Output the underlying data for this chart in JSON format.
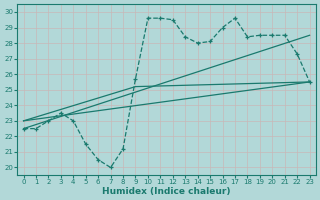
{
  "xlabel": "Humidex (Indice chaleur)",
  "xlim": [
    -0.5,
    23.5
  ],
  "ylim": [
    19.5,
    30.5
  ],
  "xticks": [
    0,
    1,
    2,
    3,
    4,
    5,
    6,
    7,
    8,
    9,
    10,
    11,
    12,
    13,
    14,
    15,
    16,
    17,
    18,
    19,
    20,
    21,
    22,
    23
  ],
  "yticks": [
    20,
    21,
    22,
    23,
    24,
    25,
    26,
    27,
    28,
    29,
    30
  ],
  "bg_color": "#b2d8d8",
  "grid_color": "#d4eeee",
  "line_color": "#1a7a6e",
  "line1_x": [
    0,
    1,
    2,
    3,
    4,
    5,
    6,
    7,
    8,
    9,
    10,
    11,
    12,
    13,
    14,
    15,
    16,
    17,
    18,
    19,
    20,
    21,
    22,
    23
  ],
  "line1_y": [
    22.5,
    22.5,
    23.0,
    23.5,
    23.0,
    21.5,
    20.5,
    20.0,
    21.2,
    25.7,
    29.6,
    29.6,
    29.5,
    28.4,
    28.0,
    28.1,
    29.0,
    29.6,
    28.4,
    28.5,
    28.5,
    28.5,
    27.3,
    25.5
  ],
  "line2_x": [
    0,
    23
  ],
  "line2_y": [
    22.5,
    28.5
  ],
  "line3_x": [
    0,
    9,
    23
  ],
  "line3_y": [
    23.0,
    25.2,
    25.5
  ],
  "line4_x": [
    0,
    23
  ],
  "line4_y": [
    23.0,
    25.5
  ]
}
